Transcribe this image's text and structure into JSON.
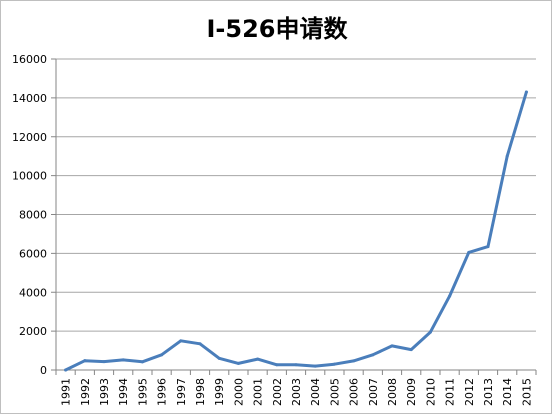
{
  "chart_data": {
    "type": "line",
    "title": "I-526申请数",
    "xlabel": "",
    "ylabel": "",
    "categories": [
      "1991",
      "1992",
      "1993",
      "1994",
      "1995",
      "1996",
      "1997",
      "1998",
      "1999",
      "2000",
      "2001",
      "2002",
      "2003",
      "2004",
      "2005",
      "2006",
      "2007",
      "2008",
      "2009",
      "2010",
      "2011",
      "2012",
      "2013",
      "2014",
      "2015"
    ],
    "series": [
      {
        "values": [
          0,
          480,
          430,
          520,
          420,
          780,
          1500,
          1350,
          600,
          340,
          560,
          270,
          270,
          200,
          300,
          470,
          780,
          1240,
          1050,
          1950,
          3800,
          6050,
          6350,
          11000,
          14300
        ]
      }
    ],
    "ylim": [
      0,
      16000
    ],
    "yticks": [
      0,
      2000,
      4000,
      6000,
      8000,
      10000,
      12000,
      14000,
      16000
    ],
    "grid": "horizontal",
    "legend": "none",
    "colors": {
      "line": "#4a7ebb",
      "grid": "#a6a6a6",
      "axis": "#868686",
      "text": "#000000"
    }
  }
}
